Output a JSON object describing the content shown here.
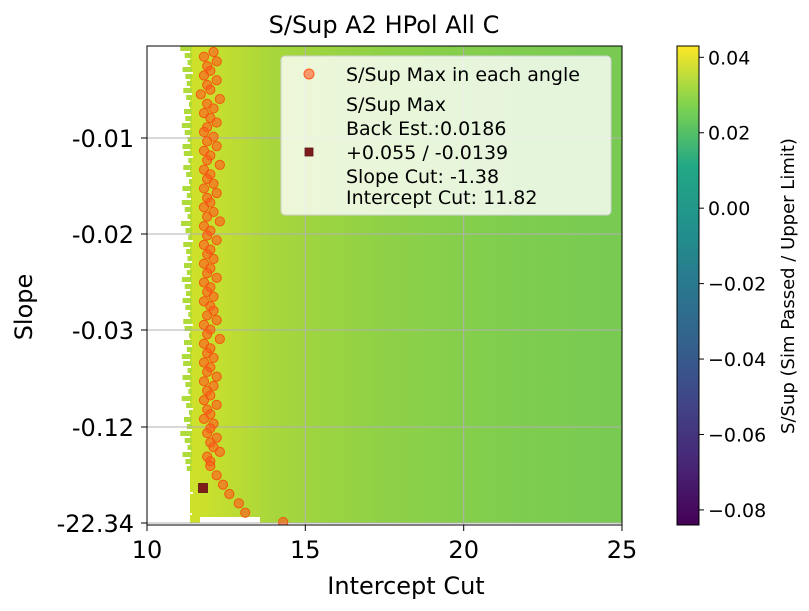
{
  "chart_data": {
    "type": "heatmap",
    "title": "S/Sup A2 HPol All C",
    "xlabel": "Intercept Cut",
    "ylabel": "Slope",
    "xlim": [
      10,
      25
    ],
    "x_ticks": [
      "10",
      "15",
      "20",
      "25"
    ],
    "y_ticks": [
      "-0.01",
      "-0.02",
      "-0.03",
      "-0.12",
      "-22.34"
    ],
    "grid": true,
    "colorbar": {
      "label": "S/Sup (Sim Passed / Upper Limit)",
      "min": -0.084,
      "max": 0.043,
      "ticks": [
        "0.04",
        "0.02",
        "0.00",
        "−0.02",
        "−0.04",
        "−0.06",
        "−0.08"
      ],
      "tick_values": [
        0.04,
        0.02,
        0.0,
        -0.02,
        -0.04,
        -0.06,
        -0.08
      ],
      "colormap": "viridis"
    },
    "legend": {
      "placement": "top-right",
      "entries": [
        {
          "name": "S/Sup Max in each angle",
          "marker": "circle",
          "color": "#ff5a1f"
        },
        {
          "name": "S/Sup Max",
          "marker": "square",
          "color": "#7f1d1d",
          "lines": [
            "S/Sup Max",
            "Back Est.:0.0186",
            "+0.055 / -0.0139",
            "Slope Cut: -1.38",
            "Intercept Cut: 11.82"
          ]
        }
      ]
    },
    "overall_max": {
      "intercept_cut": 11.82,
      "slope_cut": -1.38,
      "back_est": 0.0186,
      "err_plus": 0.055,
      "err_minus": 0.0139
    },
    "max_points_intercept": [
      12.1,
      11.8,
      12.2,
      11.9,
      12.0,
      11.8,
      12.2,
      11.9,
      12.0,
      11.7,
      12.3,
      11.9,
      12.1,
      11.8,
      12.0,
      12.2,
      11.9,
      11.8,
      12.1,
      11.9,
      12.2,
      11.8,
      12.0,
      11.9,
      12.3,
      11.8,
      12.0,
      11.9,
      12.1,
      11.8,
      12.2,
      11.9,
      12.0,
      11.8,
      12.1,
      11.9,
      12.3,
      11.8,
      12.0,
      11.9,
      12.2,
      11.8,
      12.0,
      11.9,
      12.1,
      11.8,
      12.0,
      11.9,
      12.2,
      11.8,
      12.0,
      11.9,
      12.1,
      11.8,
      12.0,
      12.1,
      11.9,
      12.2,
      11.8,
      12.0,
      11.9,
      12.3,
      11.8,
      12.0,
      11.9,
      12.1,
      11.8,
      12.0,
      11.9,
      12.2,
      11.8,
      12.1,
      11.9,
      12.0,
      11.8,
      12.2,
      11.9,
      12.0,
      11.8,
      12.1,
      12.0,
      11.9,
      12.2,
      12.0,
      12.1,
      12.3,
      11.9,
      12.0,
      12.0,
      12.2,
      12.4,
      12.6,
      12.9,
      13.1,
      14.3
    ]
  }
}
